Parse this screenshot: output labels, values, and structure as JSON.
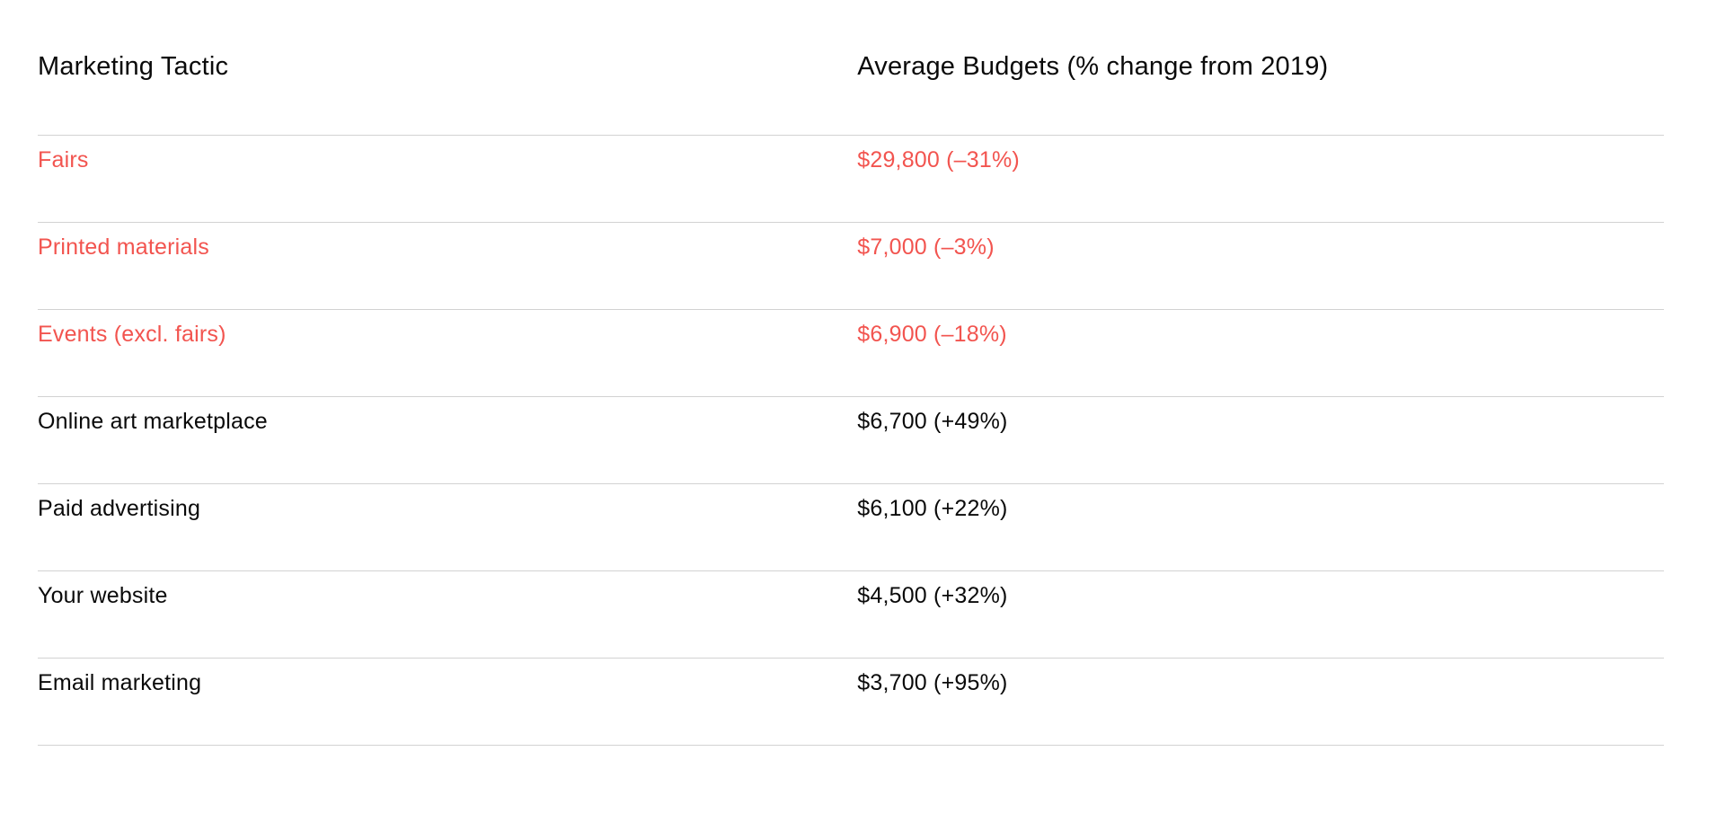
{
  "table": {
    "columns": [
      {
        "key": "tactic",
        "label": "Marketing Tactic"
      },
      {
        "key": "budget",
        "label": "Average Budgets (% change from 2019)"
      }
    ],
    "rows": [
      {
        "tactic": "Fairs",
        "budget": "$29,800 (–31%)",
        "highlight": true
      },
      {
        "tactic": "Printed materials",
        "budget": "$7,000 (–3%)",
        "highlight": true
      },
      {
        "tactic": "Events (excl. fairs)",
        "budget": "$6,900 (–18%)",
        "highlight": true
      },
      {
        "tactic": "Online art marketplace",
        "budget": "$6,700 (+49%)",
        "highlight": false
      },
      {
        "tactic": "Paid advertising",
        "budget": "$6,100 (+22%)",
        "highlight": false
      },
      {
        "tactic": "Your website",
        "budget": "$4,500 (+32%)",
        "highlight": false
      },
      {
        "tactic": "Email marketing",
        "budget": "$3,700 (+95%)",
        "highlight": false
      }
    ],
    "colors": {
      "highlight_text": "#f2544f",
      "default_text": "#0a0a0a",
      "divider": "#d2d2d2",
      "background": "#ffffff"
    }
  },
  "chart_data": {
    "type": "table",
    "title": "",
    "columns": [
      "Marketing Tactic",
      "Average Budgets (% change from 2019)"
    ],
    "rows": [
      [
        "Fairs",
        "$29,800 (–31%)"
      ],
      [
        "Printed materials",
        "$7,000 (–3%)"
      ],
      [
        "Events (excl. fairs)",
        "$6,900 (–18%)"
      ],
      [
        "Online art marketplace",
        "$6,700 (+49%)"
      ],
      [
        "Paid advertising",
        "$6,100 (+22%)"
      ],
      [
        "Your website",
        "$4,500 (+32%)"
      ],
      [
        "Email marketing",
        "$3,700 (+95%)"
      ]
    ],
    "categories": [
      "Fairs",
      "Printed materials",
      "Events (excl. fairs)",
      "Online art marketplace",
      "Paid advertising",
      "Your website",
      "Email marketing"
    ],
    "series": [
      {
        "name": "Average budget (USD)",
        "values": [
          29800,
          7000,
          6900,
          6700,
          6100,
          4500,
          3700
        ]
      },
      {
        "name": "Percent change from 2019",
        "values": [
          -31,
          -3,
          -18,
          49,
          22,
          32,
          95
        ]
      }
    ],
    "highlighted_categories": [
      "Fairs",
      "Printed materials",
      "Events (excl. fairs)"
    ],
    "layout_hints": {
      "grid": "horizontal row dividers only",
      "highlight_color": "#f2544f",
      "text_color": "#0a0a0a"
    }
  }
}
